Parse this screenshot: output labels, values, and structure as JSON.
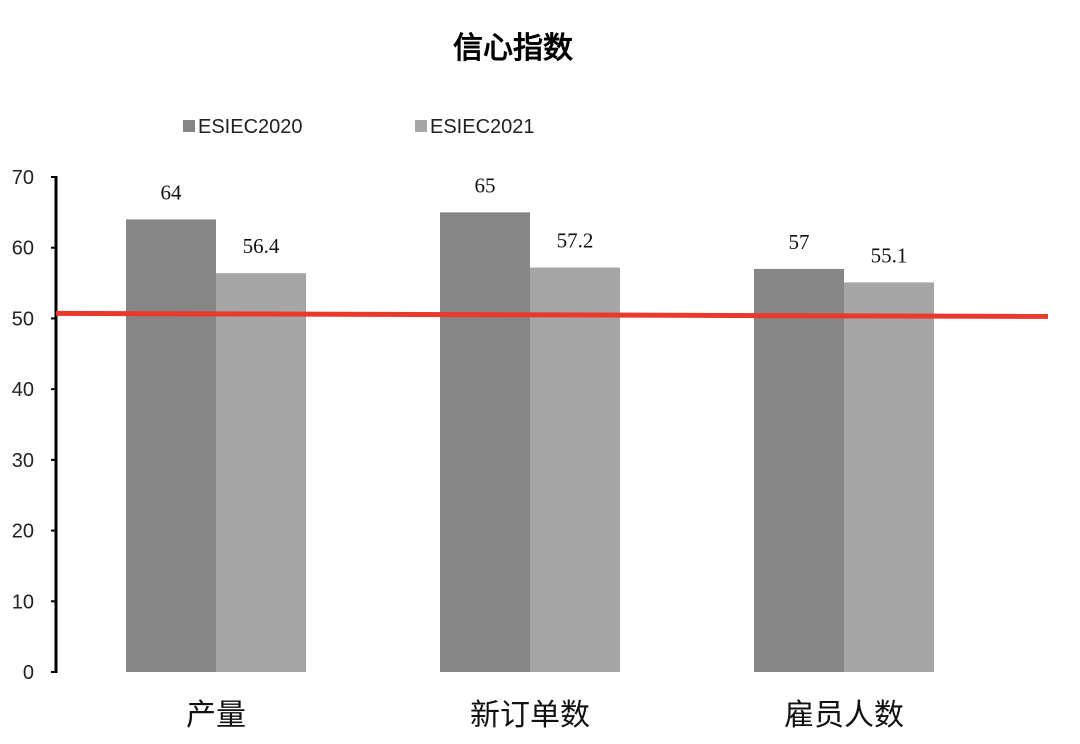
{
  "chart_data": {
    "type": "bar",
    "title": "信心指数",
    "categories": [
      "产量",
      "新订单数",
      "雇员人数"
    ],
    "series": [
      {
        "name": "ESIEC2020",
        "values": [
          64,
          65,
          57
        ],
        "color": "#868686"
      },
      {
        "name": "ESIEC2021",
        "values": [
          56.4,
          57.2,
          55.1
        ],
        "color": "#a6a6a6"
      }
    ],
    "ylim": [
      0,
      70
    ],
    "yticks": [
      0,
      10,
      20,
      30,
      40,
      50,
      60,
      70
    ],
    "reference_line": {
      "value": 50,
      "color": "#e8392b"
    },
    "grid": false,
    "legend": "top",
    "xlabel": "",
    "ylabel": ""
  }
}
